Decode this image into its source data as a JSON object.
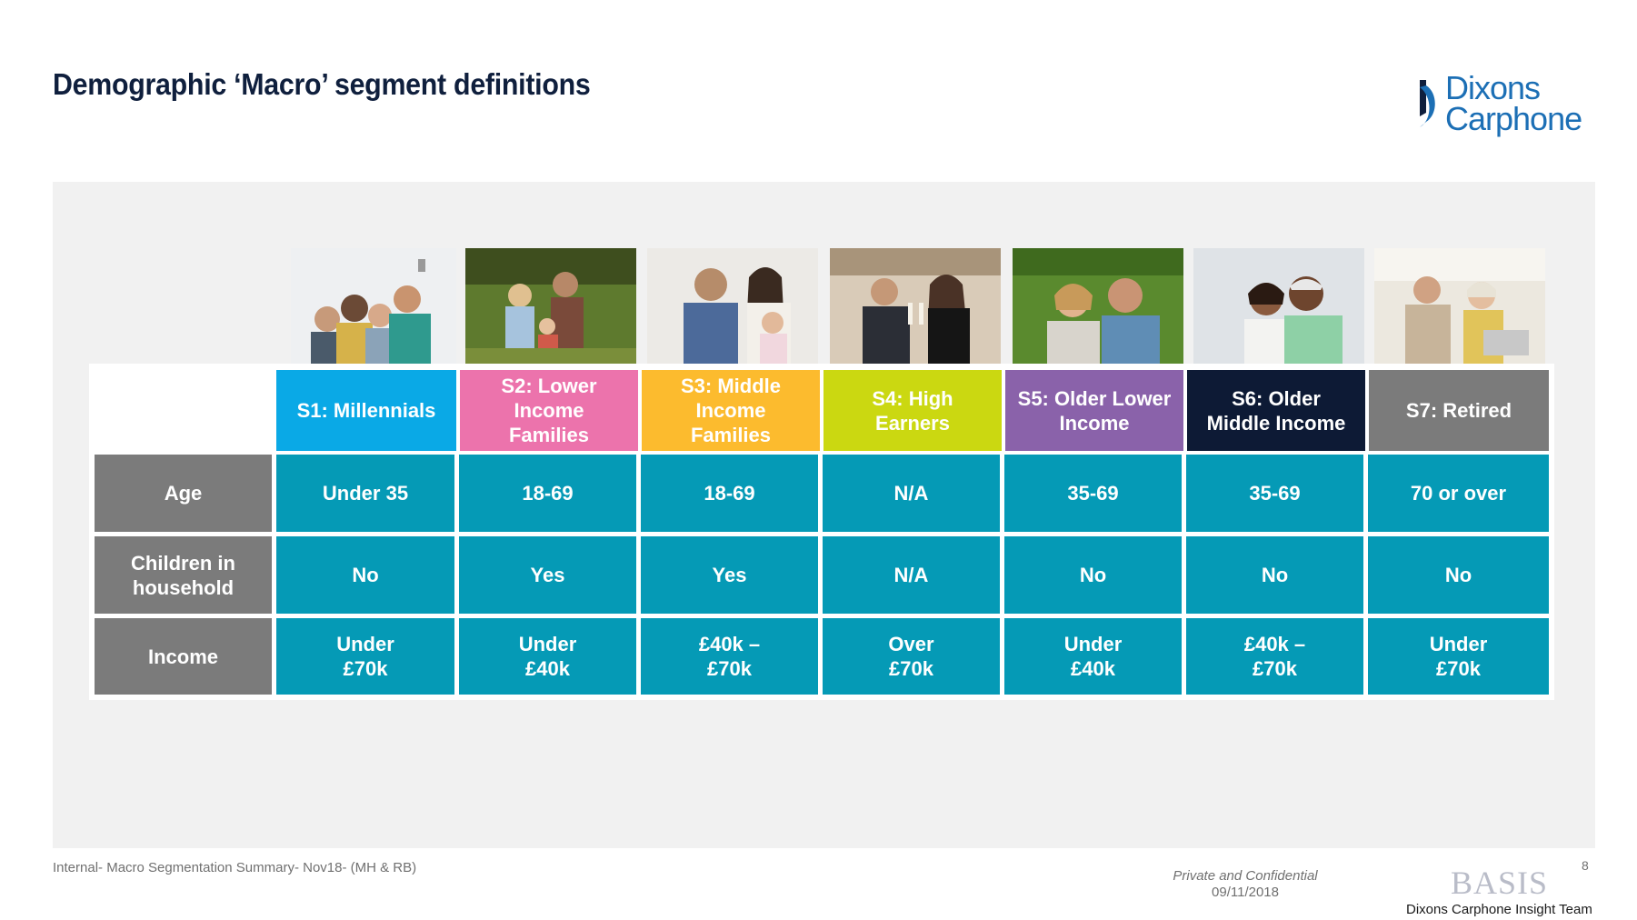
{
  "title": "Demographic ‘Macro’ segment definitions",
  "logo": {
    "line1": "Dixons",
    "line2": "Carphone",
    "color": "#1c6fb5"
  },
  "segments": [
    {
      "name": "S1: Millennials",
      "color": "#0aa9e6",
      "photo": "group-selfie-young-friends"
    },
    {
      "name": "S2: Lower Income Families",
      "color": "#ec73ac",
      "photo": "family-outdoors-field"
    },
    {
      "name": "S3: Middle Income Families",
      "color": "#fcbb2e",
      "photo": "parents-with-child"
    },
    {
      "name": "S4: High Earners",
      "color": "#cbd811",
      "photo": "couple-toasting-champagne"
    },
    {
      "name": "S5: Older Lower Income",
      "color": "#8a62aa",
      "photo": "older-couple-garden"
    },
    {
      "name": "S6: Older Middle Income",
      "color": "#0d1a35",
      "photo": "older-couple-smiling"
    },
    {
      "name": "S7: Retired",
      "color": "#7b7b7b",
      "photo": "retired-couple-laptop"
    }
  ],
  "rows": [
    {
      "label": "Age",
      "values": [
        "Under 35",
        "18-69",
        "18-69",
        "N/A",
        "35-69",
        "35-69",
        "70 or over"
      ]
    },
    {
      "label": "Children in household",
      "values": [
        "No",
        "Yes",
        "Yes",
        "N/A",
        "No",
        "No",
        "No"
      ]
    },
    {
      "label": "Income",
      "values": [
        "Under £70k",
        "Under £40k",
        "£40k – £70k",
        "Over £70k",
        "Under £40k",
        "£40k – £70k",
        "Under £70k"
      ]
    }
  ],
  "colors": {
    "cell": "#059ab6",
    "row_label": "#7b7b7b",
    "panel": "#f1f1f1"
  },
  "footer": {
    "left": "Internal- Macro Segmentation Summary- Nov18- (MH & RB)",
    "confidential": "Private and Confidential",
    "date": "09/11/2018",
    "page": "8",
    "basis": "BASIS",
    "team": "Dixons Carphone Insight Team"
  }
}
